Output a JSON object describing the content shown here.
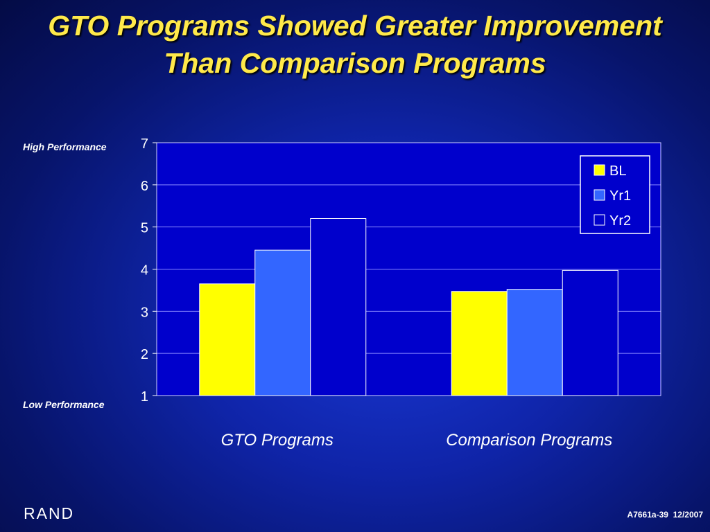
{
  "slide": {
    "title_line1": "GTO Programs Showed Greater Improvement",
    "title_line2": "Than Comparison Programs",
    "high_label": "High Performance",
    "low_label": "Low Performance",
    "logo_text": "RAND",
    "slide_code": "A7661a-39",
    "slide_date": "12/2007"
  },
  "chart_data": {
    "type": "bar",
    "categories": [
      "GTO Programs",
      "Comparison Programs"
    ],
    "series": [
      {
        "name": "BL",
        "values": [
          3.65,
          3.47
        ],
        "color": "#ffff00"
      },
      {
        "name": "Yr1",
        "values": [
          4.45,
          3.52
        ],
        "color": "#3366ff"
      },
      {
        "name": "Yr2",
        "values": [
          5.2,
          3.97
        ],
        "color": "#0000cc"
      }
    ],
    "yticks": [
      1,
      2,
      3,
      4,
      5,
      6,
      7
    ],
    "ylim": [
      1,
      7
    ],
    "grid": true,
    "legend_position": "top-right",
    "colors": {
      "plot_bg": "#0000cc",
      "grid": "#8a8aff",
      "bar_outline": "#ffffff",
      "text": "#ffffff"
    }
  }
}
